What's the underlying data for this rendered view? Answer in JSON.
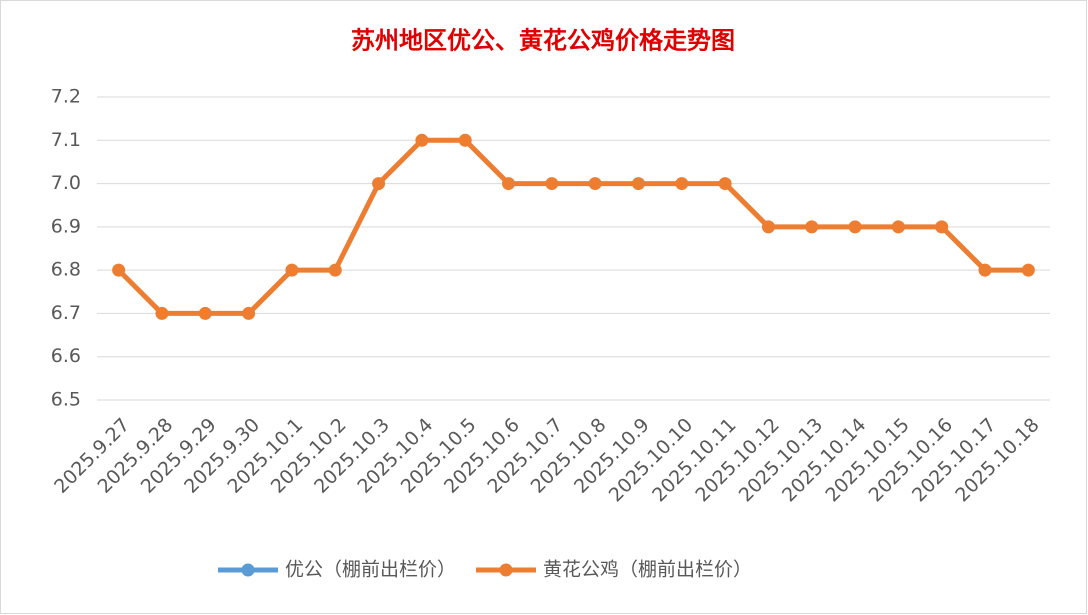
{
  "chart_data": {
    "type": "line",
    "title": "苏州地区优公、黄花公鸡价格走势图",
    "categories": [
      "2025.9.27",
      "2025.9.28",
      "2025.9.29",
      "2025.9.30",
      "2025.10.1",
      "2025.10.2",
      "2025.10.3",
      "2025.10.4",
      "2025.10.5",
      "2025.10.6",
      "2025.10.7",
      "2025.10.8",
      "2025.10.9",
      "2025.10.10",
      "2025.10.11",
      "2025.10.12",
      "2025.10.13",
      "2025.10.14",
      "2025.10.15",
      "2025.10.16",
      "2025.10.17",
      "2025.10.18"
    ],
    "series": [
      {
        "name": "优公（棚前出栏价）",
        "color": "#5b9bd5",
        "values": [
          null,
          null,
          null,
          null,
          null,
          null,
          null,
          null,
          null,
          null,
          null,
          null,
          null,
          null,
          null,
          null,
          null,
          null,
          null,
          null,
          null,
          null
        ]
      },
      {
        "name": "黄花公鸡（棚前出栏价）",
        "color": "#ed7d31",
        "values": [
          6.8,
          6.7,
          6.7,
          6.7,
          6.8,
          6.8,
          7.0,
          7.1,
          7.1,
          7.0,
          7.0,
          7.0,
          7.0,
          7.0,
          7.0,
          6.9,
          6.9,
          6.9,
          6.9,
          6.9,
          6.8,
          6.8
        ]
      }
    ],
    "ylim": [
      6.5,
      7.2
    ],
    "yticks": [
      6.5,
      6.6,
      6.7,
      6.8,
      6.9,
      {
        "value": 7,
        "label": "7.0"
      },
      7.1,
      7.2
    ],
    "grid": true,
    "legend": "bottom"
  }
}
